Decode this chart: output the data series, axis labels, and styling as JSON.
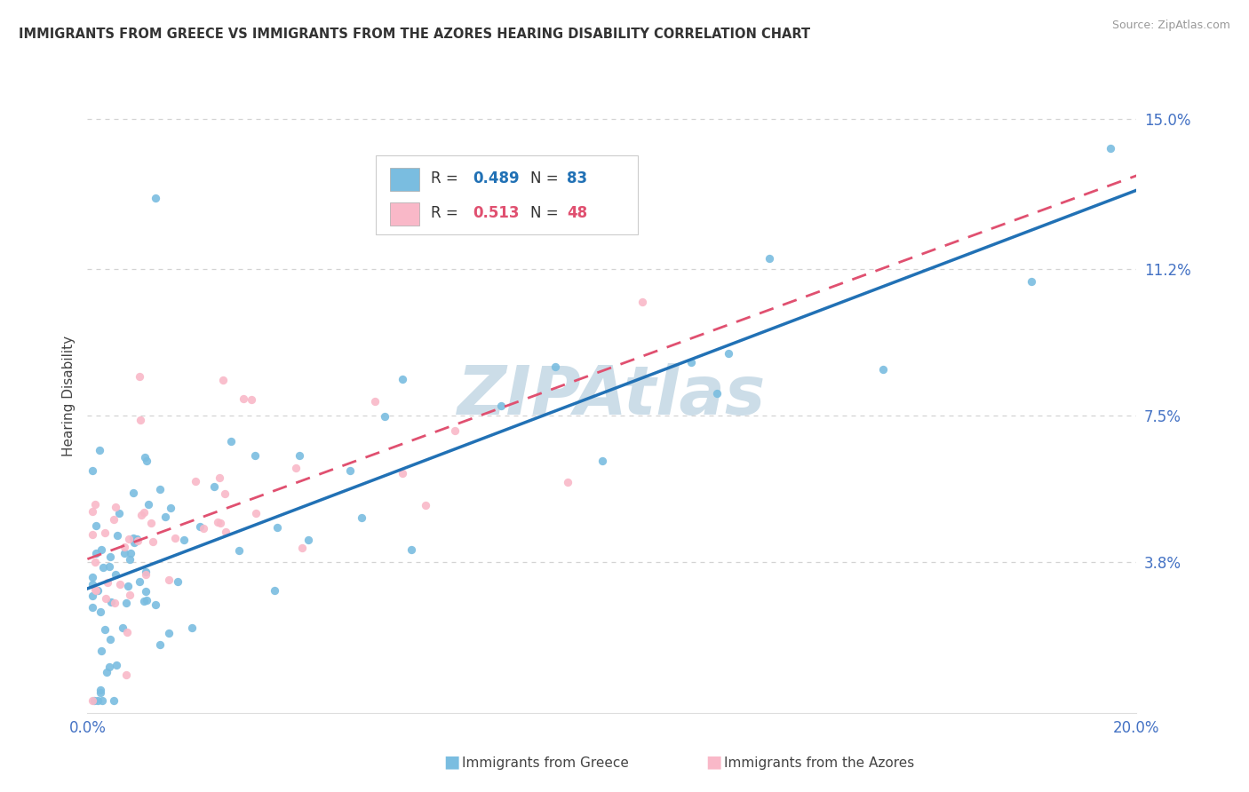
{
  "title": "IMMIGRANTS FROM GREECE VS IMMIGRANTS FROM THE AZORES HEARING DISABILITY CORRELATION CHART",
  "source": "Source: ZipAtlas.com",
  "ylabel": "Hearing Disability",
  "xlim": [
    0.0,
    0.2
  ],
  "ylim": [
    0.0,
    0.16
  ],
  "ytick_labels": [
    "3.8%",
    "7.5%",
    "11.2%",
    "15.0%"
  ],
  "ytick_values": [
    0.038,
    0.075,
    0.112,
    0.15
  ],
  "grid_color": "#c8c8c8",
  "watermark": "ZIPAtlas",
  "watermark_color": "#ccdde8",
  "series": [
    {
      "name": "Immigrants from Greece",
      "color": "#7abde0",
      "R": 0.489,
      "N": 83,
      "line_color": "#2171b5"
    },
    {
      "name": "Immigrants from the Azores",
      "color": "#f9b8c8",
      "R": 0.513,
      "N": 48,
      "line_color": "#e05070"
    }
  ],
  "background_color": "#ffffff",
  "title_color": "#333333",
  "axis_color": "#4472c4",
  "title_fontsize": 11,
  "axis_label_fontsize": 11,
  "tick_fontsize": 12
}
